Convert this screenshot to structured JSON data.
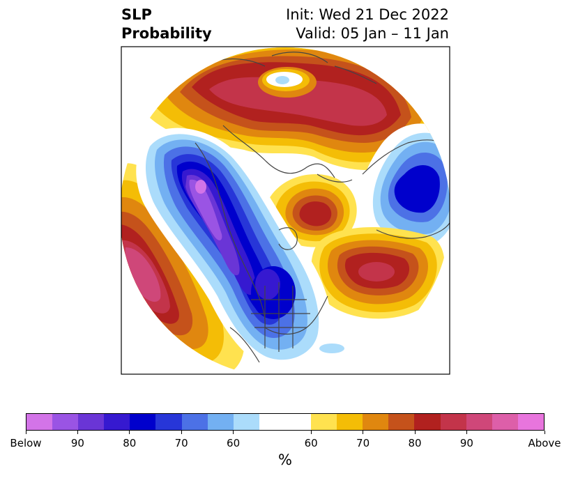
{
  "title": {
    "left_line1": "SLP",
    "left_line2": "Probability",
    "right_line1": "Init: Wed 21 Dec 2022",
    "right_line2": "Valid: 05 Jan – 11 Jan"
  },
  "map": {
    "projection": "north-polar-stereographic",
    "boundaries": [
      "coastlines",
      "countries",
      "states"
    ],
    "features": [
      {
        "name": "above-normal-arctic",
        "category": "above",
        "level": 80
      },
      {
        "name": "above-normal-aleutian",
        "category": "above",
        "level": 90
      },
      {
        "name": "above-normal-greenland",
        "category": "above",
        "level": 80
      },
      {
        "name": "above-normal-north-atlantic",
        "category": "above",
        "level": 80
      },
      {
        "name": "below-normal-west-canada-alaska",
        "category": "below",
        "level": 90
      },
      {
        "name": "below-normal-eurasia",
        "category": "below",
        "level": 80
      },
      {
        "name": "below-normal-east-us",
        "category": "below",
        "level": 80
      }
    ]
  },
  "colorbar": {
    "unit_label": "%",
    "colors": [
      "#d374e8",
      "#9a54e4",
      "#6a35d6",
      "#3619d0",
      "#0000cc",
      "#2736d8",
      "#4c71e6",
      "#73b0f2",
      "#abdcfb",
      "#ffffff",
      "#ffe24f",
      "#f4bd06",
      "#e0870f",
      "#c5521b",
      "#b1211f",
      "#c3344a",
      "#cf4779",
      "#dd5fa9",
      "#e875dd"
    ],
    "tick_labels": [
      "Below",
      "90",
      "80",
      "70",
      "60",
      "60",
      "70",
      "80",
      "90",
      "Above"
    ]
  }
}
